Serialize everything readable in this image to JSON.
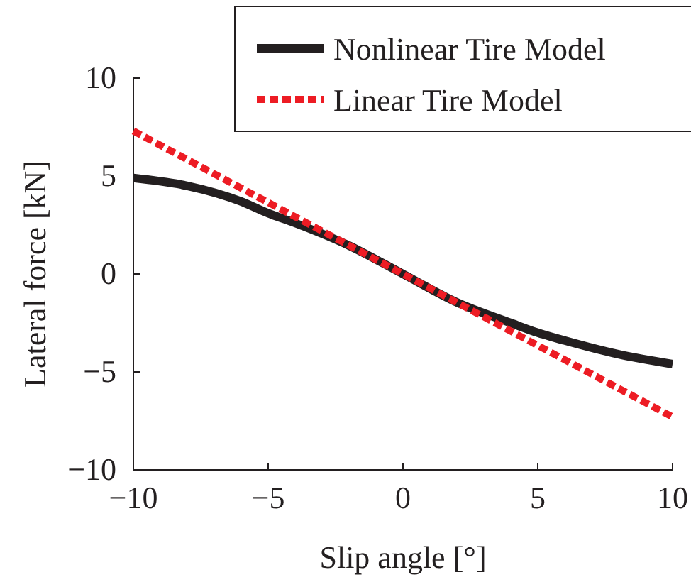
{
  "chart_data": {
    "type": "line",
    "xlabel": "Slip angle [°]",
    "ylabel": "Lateral force [kN]",
    "xlim": [
      -10,
      10
    ],
    "ylim": [
      -10,
      10
    ],
    "xticks": [
      {
        "value": -10,
        "label": "−10"
      },
      {
        "value": -5,
        "label": "−5"
      },
      0,
      5,
      10
    ],
    "yticks": [
      {
        "value": -10,
        "label": "−10"
      },
      {
        "value": -5,
        "label": "−5"
      },
      0,
      5,
      10
    ],
    "grid": false,
    "legend": "top right",
    "marker": "none",
    "series": [
      {
        "name": "Nonlinear Tire Model",
        "color": "#231f20",
        "line_style": "solid",
        "x": [
          -10,
          -8,
          -6,
          -5,
          -4,
          -2,
          0,
          2,
          4,
          5,
          6,
          8,
          10
        ],
        "values": [
          4.9,
          4.5,
          3.7,
          3.1,
          2.6,
          1.45,
          0,
          -1.45,
          -2.5,
          -3.0,
          -3.4,
          -4.1,
          -4.6
        ]
      },
      {
        "name": "Linear Tire Model",
        "color": "#ed1c24",
        "line_style": "dotted",
        "x": [
          -10,
          10
        ],
        "values": [
          7.3,
          -7.3
        ]
      }
    ]
  }
}
